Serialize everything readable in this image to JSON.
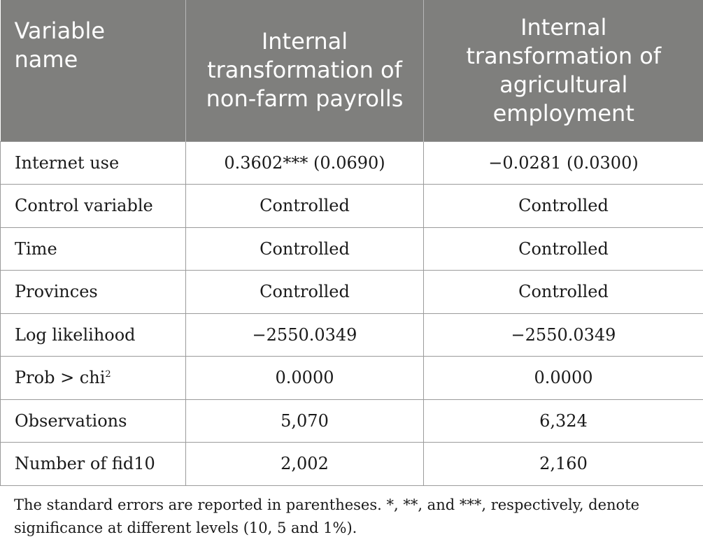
{
  "table": {
    "headers": [
      "Variable name",
      "Internal transformation of non-farm payrolls",
      "Internal transformation of agricultural employment"
    ],
    "rows": [
      {
        "label": "Internet use",
        "col1": "0.3602*** (0.0690)",
        "col2": "−0.0281 (0.0300)"
      },
      {
        "label": "Control variable",
        "col1": "Controlled",
        "col2": "Controlled"
      },
      {
        "label": "Time",
        "col1": "Controlled",
        "col2": "Controlled"
      },
      {
        "label": "Provinces",
        "col1": "Controlled",
        "col2": "Controlled"
      },
      {
        "label": "Log likelihood",
        "col1": "−2550.0349",
        "col2": "−2550.0349"
      },
      {
        "label": "Prob > chi",
        "label_sup": "2",
        "col1": "0.0000",
        "col2": "0.0000"
      },
      {
        "label": "Observations",
        "col1": "5,070",
        "col2": "6,324"
      },
      {
        "label": "Number of fid10",
        "col1": "2,002",
        "col2": "2,160"
      }
    ]
  },
  "footnote": "The standard errors are reported in parentheses. *, **, and ***, respectively, denote significance at different levels (10, 5 and 1%)."
}
